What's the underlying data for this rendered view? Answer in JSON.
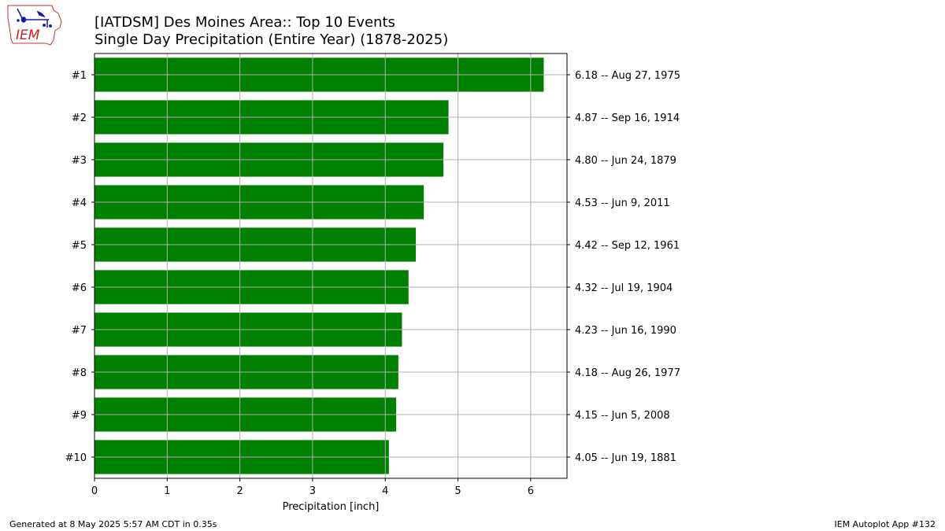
{
  "header": {
    "logo_text": "IEM",
    "title_line1": "[IATDSM] Des Moines Area:: Top 10 Events",
    "title_line2": "Single Day Precipitation (Entire Year) (1878-2025)"
  },
  "footer": {
    "generated": "Generated at 8 May 2025 5:57 AM CDT in 0.35s",
    "app": "IEM Autoplot App #132"
  },
  "colors": {
    "bar": "#008000",
    "grid": "#b0b0b0"
  },
  "chart_data": {
    "type": "bar",
    "orientation": "horizontal",
    "title": "",
    "xlabel": "Precipitation [inch]",
    "ylabel": "",
    "xlim": [
      0,
      6.5
    ],
    "xticks": [
      0,
      1,
      2,
      3,
      4,
      5,
      6
    ],
    "grid": true,
    "categories": [
      "#1",
      "#2",
      "#3",
      "#4",
      "#5",
      "#6",
      "#7",
      "#8",
      "#9",
      "#10"
    ],
    "values": [
      6.18,
      4.87,
      4.8,
      4.53,
      4.42,
      4.32,
      4.23,
      4.18,
      4.15,
      4.05
    ],
    "right_labels": [
      "6.18 -- Aug 27, 1975",
      "4.87 -- Sep 16, 1914",
      "4.80 -- Jun 24, 1879",
      "4.53 -- Jun 9, 2011",
      "4.42 -- Sep 12, 1961",
      "4.32 -- Jul 19, 1904",
      "4.23 -- Jun 16, 1990",
      "4.18 -- Aug 26, 1977",
      "4.15 -- Jun 5, 2008",
      "4.05 -- Jun 19, 1881"
    ]
  }
}
